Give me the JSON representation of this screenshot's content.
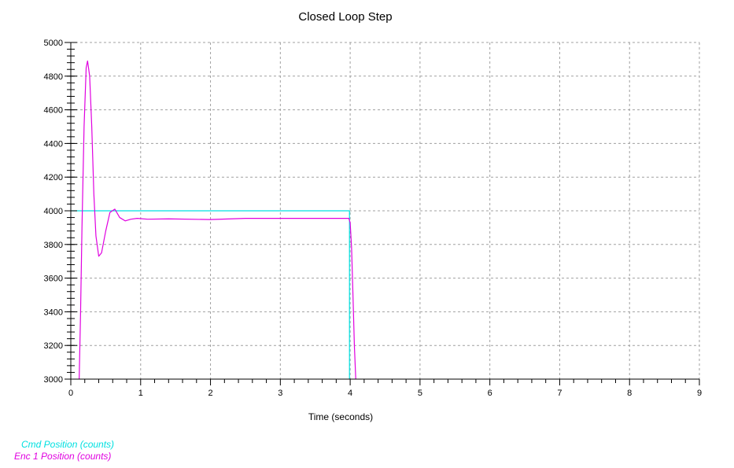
{
  "chart_data": {
    "type": "line",
    "title": "Closed Loop Step",
    "xlabel": "Time (seconds)",
    "ylabel": "",
    "xlim": [
      0,
      9
    ],
    "ylim": [
      3000,
      5000
    ],
    "x_ticks": [
      "0",
      "1",
      "2",
      "3",
      "4",
      "5",
      "6",
      "7",
      "8",
      "9"
    ],
    "y_ticks": [
      "3000",
      "3200",
      "3400",
      "3600",
      "3800",
      "4000",
      "4200",
      "4400",
      "4600",
      "4800",
      "5000"
    ],
    "grid": true,
    "legend_position": "bottom-left",
    "series": [
      {
        "name": "Cmd Position (counts)",
        "color": "#00e0e0",
        "points": [
          [
            0.0,
            4000
          ],
          [
            3.99,
            4000
          ],
          [
            3.99,
            3000
          ]
        ]
      },
      {
        "name": "Enc 1 Position (counts)",
        "color": "#e000e0",
        "points": [
          [
            0.12,
            3000
          ],
          [
            0.14,
            3400
          ],
          [
            0.16,
            3900
          ],
          [
            0.19,
            4500
          ],
          [
            0.22,
            4850
          ],
          [
            0.24,
            4890
          ],
          [
            0.27,
            4800
          ],
          [
            0.3,
            4500
          ],
          [
            0.33,
            4100
          ],
          [
            0.36,
            3850
          ],
          [
            0.4,
            3730
          ],
          [
            0.44,
            3750
          ],
          [
            0.5,
            3880
          ],
          [
            0.56,
            3990
          ],
          [
            0.63,
            4010
          ],
          [
            0.7,
            3960
          ],
          [
            0.78,
            3940
          ],
          [
            0.86,
            3950
          ],
          [
            0.95,
            3955
          ],
          [
            1.1,
            3950
          ],
          [
            1.4,
            3952
          ],
          [
            2.0,
            3948
          ],
          [
            2.5,
            3955
          ],
          [
            3.0,
            3955
          ],
          [
            3.5,
            3955
          ],
          [
            3.98,
            3955
          ],
          [
            4.0,
            3930
          ],
          [
            4.02,
            3780
          ],
          [
            4.04,
            3500
          ],
          [
            4.06,
            3200
          ],
          [
            4.08,
            3000
          ]
        ]
      }
    ]
  }
}
